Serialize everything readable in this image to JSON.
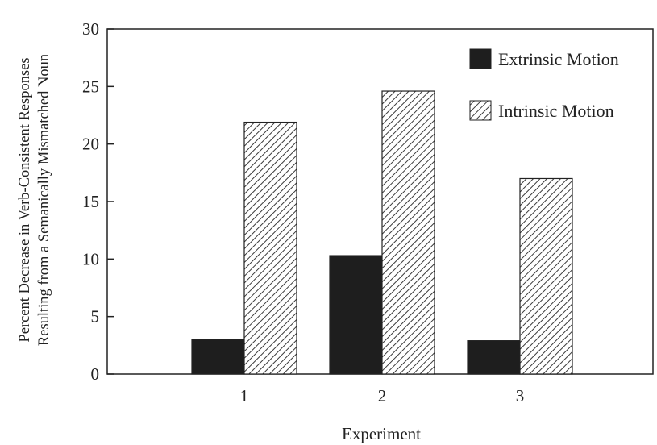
{
  "chart_data": {
    "type": "bar",
    "title": "",
    "xlabel": "Experiment",
    "ylabel_lines": [
      "Percent Decrease in Verb-Consistent Responses",
      "Resulting from a Semanically Mismatched Noun"
    ],
    "categories": [
      "1",
      "2",
      "3"
    ],
    "series": [
      {
        "name": "Extrinsic Motion",
        "values": [
          3,
          10.3,
          2.9
        ]
      },
      {
        "name": "Intrinsic Motion",
        "values": [
          21.9,
          24.6,
          17
        ]
      }
    ],
    "ylim": [
      0,
      30
    ],
    "yticks": [
      "0",
      "5",
      "10",
      "15",
      "20",
      "25",
      "30"
    ],
    "grid": false,
    "legend_position": "top-right",
    "colors": {
      "extrinsic_fill": "#1e1e1e",
      "intrinsic_stripe": "#3a3a3a",
      "axis": "#222222"
    }
  }
}
